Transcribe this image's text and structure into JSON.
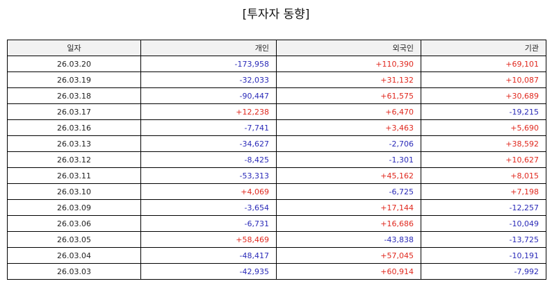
{
  "title": "[투자자 동향]",
  "colors": {
    "positive": "#e0281e",
    "negative": "#2a2ab8",
    "header_bg": "#f2f2f2"
  },
  "columns": [
    "일자",
    "개인",
    "외국인",
    "기관"
  ],
  "rows": [
    [
      "26.03.20",
      "-173,958",
      "+110,390",
      "+69,101"
    ],
    [
      "26.03.19",
      "-32,033",
      "+31,132",
      "+10,087"
    ],
    [
      "26.03.18",
      "-90,447",
      "+61,575",
      "+30,689"
    ],
    [
      "26.03.17",
      "+12,238",
      "+6,470",
      "-19,215"
    ],
    [
      "26.03.16",
      "-7,741",
      "+3,463",
      "+5,690"
    ],
    [
      "26.03.13",
      "-34,627",
      "-2,706",
      "+38,592"
    ],
    [
      "26.03.12",
      "-8,425",
      "-1,301",
      "+10,627"
    ],
    [
      "26.03.11",
      "-53,313",
      "+45,162",
      "+8,015"
    ],
    [
      "26.03.10",
      "+4,069",
      "-6,725",
      "+7,198"
    ],
    [
      "26.03.09",
      "-3,654",
      "+17,144",
      "-12,257"
    ],
    [
      "26.03.06",
      "-6,731",
      "+16,686",
      "-10,049"
    ],
    [
      "26.03.05",
      "+58,469",
      "-43,838",
      "-13,725"
    ],
    [
      "26.03.04",
      "-48,417",
      "+57,045",
      "-10,191"
    ],
    [
      "26.03.03",
      "-42,935",
      "+60,914",
      "-7,992"
    ]
  ]
}
